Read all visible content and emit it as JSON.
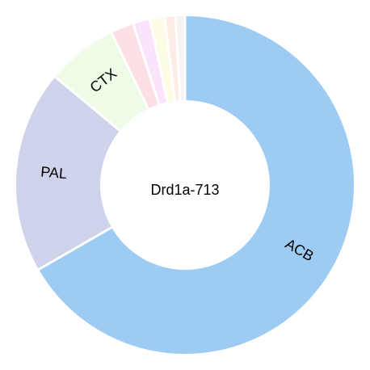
{
  "chart_data": {
    "type": "pie",
    "donut": true,
    "center_label": "Drd1a-713",
    "slices": [
      {
        "label": "ACB",
        "value": 66.0,
        "color": "#9ecbf3",
        "show_label": true
      },
      {
        "label": "PAL",
        "value": 19.2,
        "color": "#ced2ea",
        "show_label": true
      },
      {
        "label": "CTX",
        "value": 6.7,
        "color": "#eefbe6",
        "show_label": true
      },
      {
        "label": "",
        "value": 2.2,
        "color": "#fde0e6",
        "show_label": false
      },
      {
        "label": "",
        "value": 1.6,
        "color": "#fae3fb",
        "show_label": false
      },
      {
        "label": "",
        "value": 1.4,
        "color": "#fdfce5",
        "show_label": false
      },
      {
        "label": "",
        "value": 1.0,
        "color": "#fdece5",
        "show_label": false
      },
      {
        "label": "",
        "value": 0.9,
        "color": "#f7f4f0",
        "show_label": false
      }
    ]
  }
}
